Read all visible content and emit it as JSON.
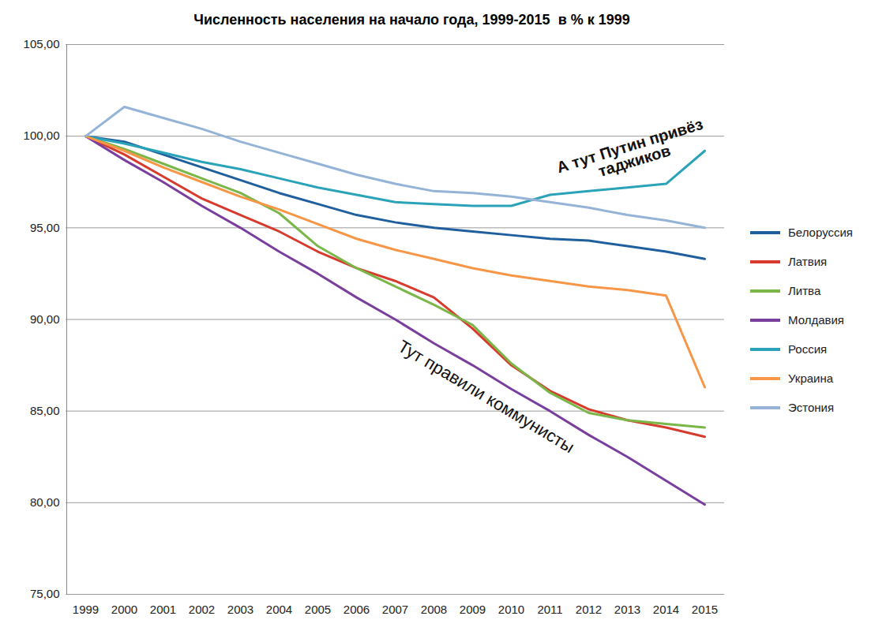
{
  "chart_data": {
    "type": "line",
    "title": "Численность населения на начало года, 1999-2015  в % к 1999",
    "categories": [
      "1999",
      "2000",
      "2001",
      "2002",
      "2003",
      "2004",
      "2005",
      "2006",
      "2007",
      "2008",
      "2009",
      "2010",
      "2011",
      "2012",
      "2013",
      "2014",
      "2015"
    ],
    "ylim": [
      75,
      105
    ],
    "yticks": [
      {
        "value": 75,
        "label": "75,00"
      },
      {
        "value": 80,
        "label": "80,00"
      },
      {
        "value": 85,
        "label": "85,00"
      },
      {
        "value": 90,
        "label": "90,00"
      },
      {
        "value": 95,
        "label": "95,00"
      },
      {
        "value": 100,
        "label": "100,00"
      },
      {
        "value": 105,
        "label": "105,00"
      }
    ],
    "grid": true,
    "legend": "right",
    "series": [
      {
        "name": "Белоруссия",
        "color": "#1f5f9e",
        "values": [
          100,
          99.7,
          99.0,
          98.3,
          97.6,
          96.9,
          96.3,
          95.7,
          95.3,
          95.0,
          94.8,
          94.6,
          94.4,
          94.3,
          94.0,
          93.7,
          93.3
        ]
      },
      {
        "name": "Латвия",
        "color": "#d63b2e",
        "values": [
          100,
          99.0,
          97.8,
          96.6,
          95.7,
          94.8,
          93.7,
          92.8,
          92.1,
          91.2,
          89.5,
          87.5,
          86.1,
          85.1,
          84.5,
          84.1,
          83.6
        ]
      },
      {
        "name": "Литва",
        "color": "#7ab648",
        "values": [
          100,
          99.3,
          98.5,
          97.7,
          96.9,
          95.8,
          94.0,
          92.8,
          91.8,
          90.8,
          89.7,
          87.6,
          86.0,
          84.9,
          84.5,
          84.3,
          84.1
        ]
      },
      {
        "name": "Молдавия",
        "color": "#7a3f9d",
        "values": [
          100,
          98.7,
          97.5,
          96.2,
          95.0,
          93.7,
          92.5,
          91.2,
          90.0,
          88.7,
          87.5,
          86.2,
          85.0,
          83.7,
          82.5,
          81.2,
          79.9
        ]
      },
      {
        "name": "Россия",
        "color": "#2aa3b8",
        "values": [
          100,
          99.6,
          99.1,
          98.6,
          98.2,
          97.7,
          97.2,
          96.8,
          96.4,
          96.3,
          96.2,
          96.2,
          96.8,
          97.0,
          97.2,
          97.4,
          99.2
        ]
      },
      {
        "name": "Украина",
        "color": "#f79646",
        "values": [
          100,
          99.2,
          98.3,
          97.5,
          96.7,
          96.0,
          95.2,
          94.4,
          93.8,
          93.3,
          92.8,
          92.4,
          92.1,
          91.8,
          91.6,
          91.3,
          86.3
        ]
      },
      {
        "name": "Эстония",
        "color": "#95b3d7",
        "values": [
          100,
          101.6,
          101.0,
          100.4,
          99.7,
          99.1,
          98.5,
          97.9,
          97.4,
          97.0,
          96.9,
          96.7,
          96.4,
          96.1,
          95.7,
          95.4,
          95.0
        ]
      }
    ],
    "annotations": [
      {
        "text": "А тут Путин привёз\nтаджиков",
        "series": "Россия"
      },
      {
        "text": "Тут правили коммунисты",
        "series": "Молдавия"
      }
    ]
  }
}
